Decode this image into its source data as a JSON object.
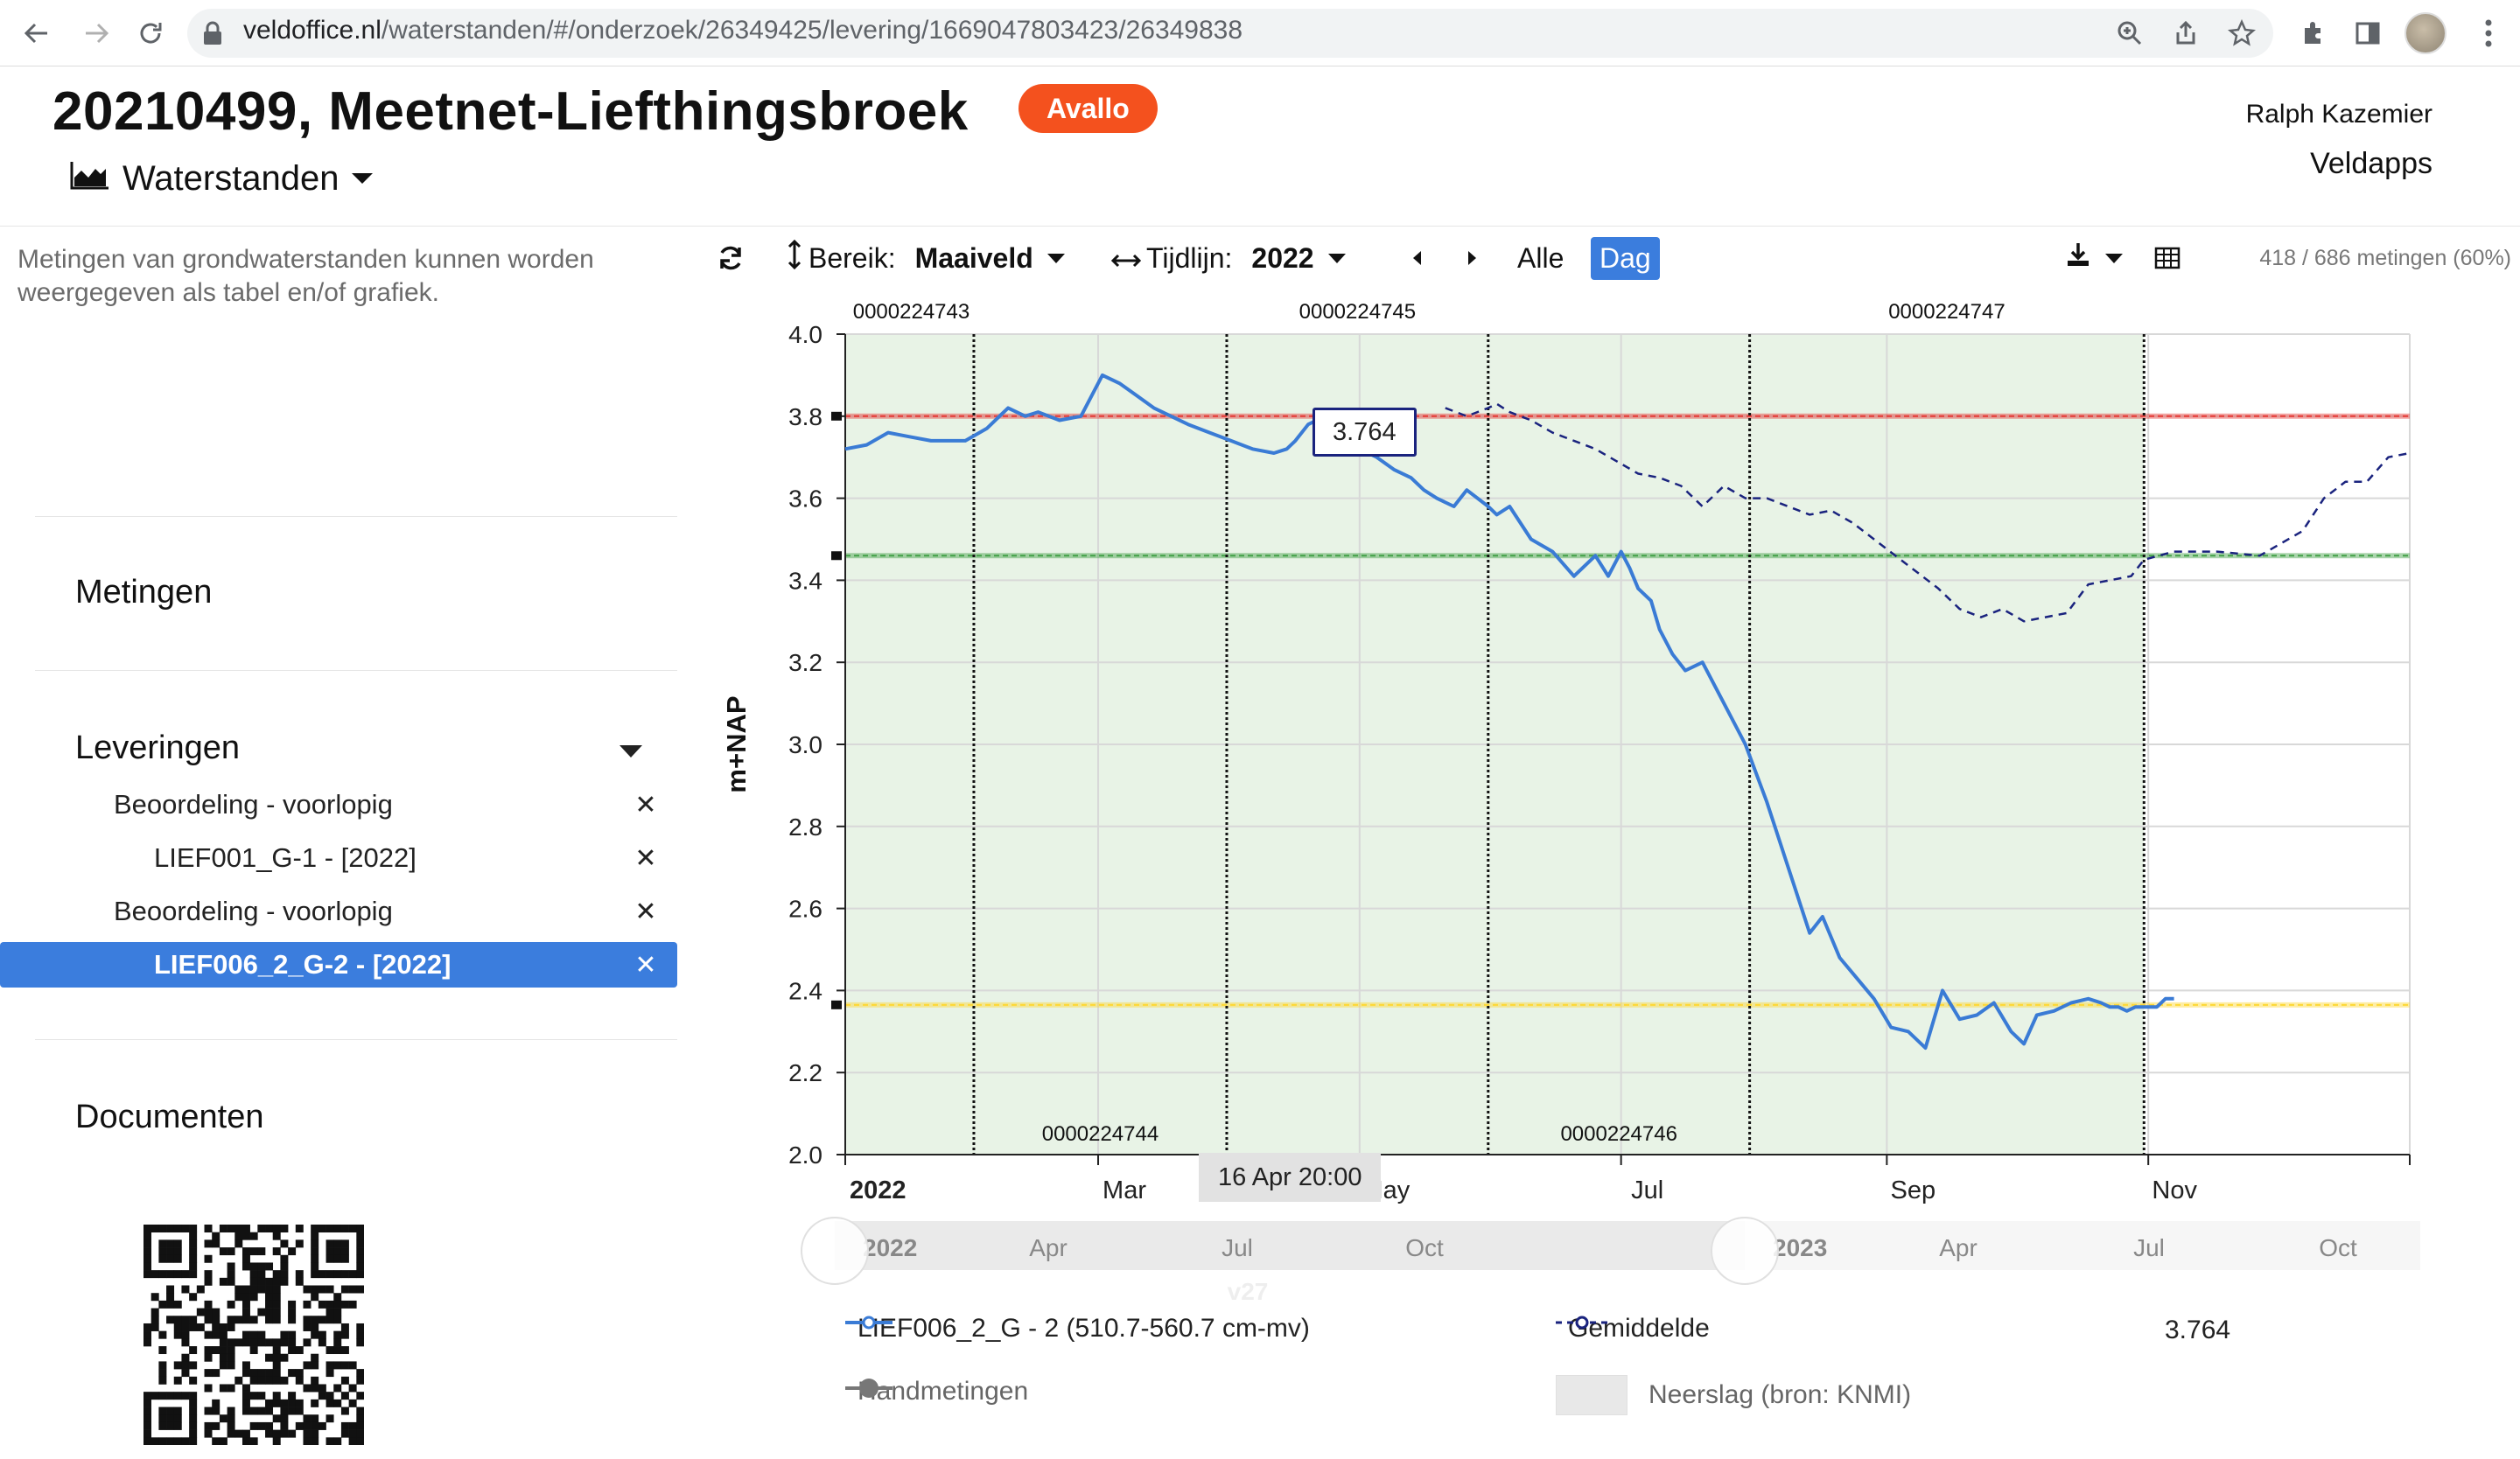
{
  "browser": {
    "url_domain": "veldoffice.nl",
    "url_path": "/waterstanden/#/onderzoek/26349425/levering/1669047803423/26349838",
    "icons": [
      "back-icon",
      "forward-icon",
      "reload-icon",
      "lock-icon",
      "zoom-icon",
      "share-icon",
      "bookmark-star-icon",
      "extensions-icon",
      "side-panel-icon",
      "profile-avatar",
      "more-icon"
    ]
  },
  "header": {
    "title": "20210499, Meetnet-Liefthingsbroek",
    "badge": "Avallo",
    "badge_color": "#f4511e",
    "view_menu": "Waterstanden",
    "user": "Ralph Kazemier",
    "org": "Veldapps"
  },
  "sidebar": {
    "description": "Metingen van grondwaterstanden kunnen worden weergegeven als tabel en/of grafiek.",
    "metingen": "Metingen",
    "leveringen": "Leveringen",
    "documenten": "Documenten",
    "items": [
      {
        "label": "Beoordeling - voorlopig",
        "level": 1,
        "selected": false
      },
      {
        "label": "LIEF001_G-1 - [2022]",
        "level": 2,
        "selected": false
      },
      {
        "label": "Beoordeling - voorlopig",
        "level": 1,
        "selected": false
      },
      {
        "label": "LIEF006_2_G-2 - [2022]",
        "level": 2,
        "selected": true
      }
    ],
    "close_glyph": "✕"
  },
  "toolbar": {
    "bereik_label": "Bereik:",
    "bereik_value": "Maaiveld",
    "tijdlijn_label": "Tijdlijn:",
    "tijdlijn_value": "2022",
    "alle": "Alle",
    "dag": "Dag",
    "count": "418 / 686 metingen (60%)"
  },
  "chart_data": {
    "type": "line",
    "ylabel": "m+NAP",
    "ylim": [
      2.0,
      4.0
    ],
    "y_ticks": [
      "4.0",
      "3.8",
      "3.6",
      "3.4",
      "3.2",
      "3.0",
      "2.8",
      "2.6",
      "2.4",
      "2.2",
      "2.0"
    ],
    "x_ticks": [
      "2022",
      "Mar",
      "May",
      "Jul",
      "Sep",
      "Nov"
    ],
    "x_range_days": [
      0,
      365
    ],
    "grid": true,
    "reference_lines": [
      {
        "value": 3.8,
        "color": "#e53935"
      },
      {
        "value": 3.46,
        "color": "#43a047"
      },
      {
        "value": 2.365,
        "color": "#fdd835"
      }
    ],
    "delivery_labels_top": [
      "0000224743",
      "0000224745",
      "0000224747"
    ],
    "delivery_labels_bottom": [
      "0000224744",
      "0000224746"
    ],
    "delivery_boundaries_days": [
      30,
      89,
      150,
      211,
      303
    ],
    "series": [
      {
        "name": "LIEF006_2_G - 2 (510.7-560.7 cm-mv)",
        "color": "#3a7bd5",
        "style": "solid",
        "x_days": [
          0,
          5,
          10,
          15,
          20,
          28,
          33,
          38,
          42,
          45,
          50,
          55,
          60,
          64,
          68,
          72,
          76,
          80,
          85,
          90,
          95,
          100,
          103,
          105,
          108,
          110,
          113,
          117,
          120,
          124,
          128,
          132,
          135,
          138,
          142,
          145,
          150,
          152,
          155,
          160,
          165,
          170,
          175,
          178,
          181,
          183,
          185,
          188,
          190,
          193,
          196,
          200,
          205,
          210,
          215,
          220,
          225,
          228,
          232,
          236,
          240,
          244,
          248,
          252,
          256,
          260,
          264,
          268,
          272,
          275,
          278,
          282,
          286,
          290,
          293,
          295,
          297,
          299,
          301,
          303,
          306,
          308,
          310
        ],
        "values": [
          3.72,
          3.73,
          3.76,
          3.75,
          3.74,
          3.74,
          3.77,
          3.82,
          3.8,
          3.81,
          3.79,
          3.8,
          3.9,
          3.88,
          3.85,
          3.82,
          3.8,
          3.78,
          3.76,
          3.74,
          3.72,
          3.71,
          3.72,
          3.74,
          3.78,
          3.79,
          3.77,
          3.75,
          3.72,
          3.7,
          3.67,
          3.65,
          3.62,
          3.6,
          3.58,
          3.62,
          3.58,
          3.56,
          3.58,
          3.5,
          3.47,
          3.41,
          3.46,
          3.41,
          3.47,
          3.43,
          3.38,
          3.35,
          3.28,
          3.22,
          3.18,
          3.2,
          3.1,
          3.0,
          2.86,
          2.7,
          2.54,
          2.58,
          2.48,
          2.43,
          2.38,
          2.31,
          2.3,
          2.26,
          2.4,
          2.33,
          2.34,
          2.37,
          2.3,
          2.27,
          2.34,
          2.35,
          2.37,
          2.38,
          2.37,
          2.36,
          2.36,
          2.35,
          2.36,
          2.36,
          2.36,
          2.38,
          2.38
        ]
      },
      {
        "name": "Gemiddelde",
        "color": "#1a237e",
        "style": "dashed",
        "x_days": [
          140,
          145,
          150,
          152,
          155,
          160,
          165,
          170,
          175,
          180,
          185,
          190,
          195,
          200,
          205,
          210,
          215,
          220,
          225,
          230,
          235,
          240,
          245,
          250,
          255,
          260,
          265,
          270,
          275,
          280,
          285,
          290,
          295,
          300,
          303,
          310,
          320,
          330,
          340,
          345,
          350,
          355,
          360,
          365
        ],
        "values": [
          3.82,
          3.8,
          3.82,
          3.83,
          3.81,
          3.79,
          3.76,
          3.74,
          3.72,
          3.69,
          3.66,
          3.65,
          3.63,
          3.58,
          3.63,
          3.6,
          3.6,
          3.58,
          3.56,
          3.57,
          3.54,
          3.5,
          3.46,
          3.42,
          3.38,
          3.33,
          3.31,
          3.33,
          3.3,
          3.31,
          3.32,
          3.39,
          3.4,
          3.41,
          3.45,
          3.47,
          3.47,
          3.46,
          3.52,
          3.6,
          3.64,
          3.64,
          3.7,
          3.71
        ]
      }
    ],
    "tooltip_value": "3.764",
    "tooltip_date": "16 Apr 20:00",
    "navigator_labels": [
      "2022",
      "Apr",
      "Jul",
      "Oct",
      "2023",
      "Apr",
      "Jul",
      "Oct"
    ],
    "navigator_week_label": "v27"
  },
  "legend": {
    "series1": "LIEF006_2_G - 2 (510.7-560.7 cm-mv)",
    "series2": "Gemiddelde",
    "value": "3.764",
    "handmetingen": "Handmetingen",
    "neerslag": "Neerslag (bron: KNMI)"
  }
}
